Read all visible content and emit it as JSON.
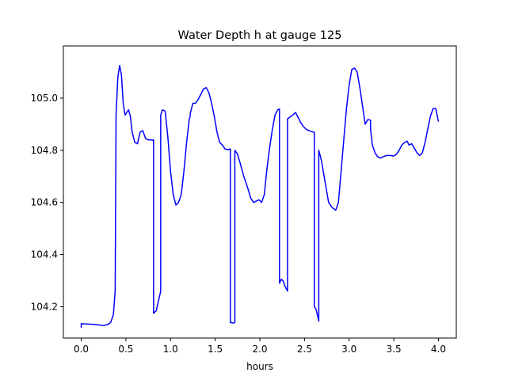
{
  "chart_data": {
    "type": "line",
    "title": "Water Depth h at gauge 125",
    "xlabel": "hours",
    "ylabel": "",
    "xlim": [
      -0.2,
      4.2
    ],
    "ylim": [
      104.08,
      105.2
    ],
    "xticks": [
      0.0,
      0.5,
      1.0,
      1.5,
      2.0,
      2.5,
      3.0,
      3.5,
      4.0
    ],
    "xtick_labels": [
      "0.0",
      "0.5",
      "1.0",
      "1.5",
      "2.0",
      "2.5",
      "3.0",
      "3.5",
      "4.0"
    ],
    "yticks": [
      104.2,
      104.4,
      104.6,
      104.8,
      105.0
    ],
    "ytick_labels": [
      "104.2",
      "104.4",
      "104.6",
      "104.8",
      "105.0"
    ],
    "grid": false,
    "legend": "none",
    "series": [
      {
        "color": "#0000ff",
        "x": [
          0.0,
          0.0,
          0.05,
          0.1,
          0.15,
          0.2,
          0.25,
          0.3,
          0.33,
          0.36,
          0.38,
          0.39,
          0.39,
          0.41,
          0.43,
          0.45,
          0.47,
          0.49,
          0.51,
          0.53,
          0.55,
          0.57,
          0.6,
          0.63,
          0.66,
          0.69,
          0.72,
          0.75,
          0.78,
          0.8,
          0.81,
          0.81,
          0.84,
          0.87,
          0.89,
          0.89,
          0.91,
          0.94,
          0.97,
          1.0,
          1.03,
          1.06,
          1.09,
          1.12,
          1.15,
          1.18,
          1.21,
          1.22,
          1.22,
          1.25,
          1.28,
          1.31,
          1.34,
          1.37,
          1.4,
          1.43,
          1.46,
          1.49,
          1.52,
          1.55,
          1.58,
          1.61,
          1.64,
          1.67,
          1.67,
          1.69,
          1.71,
          1.72,
          1.72,
          1.75,
          1.78,
          1.82,
          1.86,
          1.9,
          1.93,
          1.96,
          1.99,
          2.02,
          2.05,
          2.08,
          2.11,
          2.14,
          2.17,
          2.2,
          2.22,
          2.22,
          2.24,
          2.26,
          2.28,
          2.31,
          2.31,
          2.34,
          2.37,
          2.4,
          2.43,
          2.46,
          2.49,
          2.52,
          2.55,
          2.58,
          2.61,
          2.61,
          2.63,
          2.66,
          2.66,
          2.69,
          2.73,
          2.77,
          2.81,
          2.85,
          2.88,
          2.91,
          2.94,
          2.97,
          3.0,
          3.03,
          3.06,
          3.09,
          3.12,
          3.15,
          3.18,
          3.21,
          3.24,
          3.24,
          3.26,
          3.29,
          3.32,
          3.35,
          3.38,
          3.42,
          3.46,
          3.5,
          3.53,
          3.56,
          3.59,
          3.62,
          3.65,
          3.67,
          3.7,
          3.73,
          3.76,
          3.79,
          3.82,
          3.85,
          3.88,
          3.91,
          3.94,
          3.97,
          4.0
        ],
        "y": [
          104.12,
          104.135,
          104.134,
          104.133,
          104.132,
          104.13,
          104.128,
          104.132,
          104.14,
          104.17,
          104.26,
          104.935,
          104.935,
          105.08,
          105.125,
          105.09,
          104.98,
          104.935,
          104.945,
          104.955,
          104.93,
          104.87,
          104.83,
          104.825,
          104.87,
          104.875,
          104.845,
          104.84,
          104.84,
          104.838,
          104.84,
          104.175,
          104.185,
          104.23,
          104.26,
          104.935,
          104.955,
          104.95,
          104.85,
          104.72,
          104.63,
          104.59,
          104.6,
          104.63,
          104.72,
          104.83,
          104.92,
          104.93,
          104.94,
          104.98,
          104.98,
          104.995,
          105.015,
          105.035,
          105.04,
          105.02,
          104.98,
          104.93,
          104.87,
          104.83,
          104.82,
          104.805,
          104.802,
          104.805,
          104.14,
          104.138,
          104.138,
          104.14,
          104.8,
          104.785,
          104.75,
          104.7,
          104.66,
          104.615,
          104.6,
          104.605,
          104.61,
          104.6,
          104.63,
          104.73,
          104.81,
          104.88,
          104.935,
          104.955,
          104.958,
          104.29,
          104.305,
          104.3,
          104.28,
          104.26,
          104.92,
          104.928,
          104.935,
          104.945,
          104.925,
          104.905,
          104.89,
          104.88,
          104.875,
          104.872,
          104.868,
          104.2,
          104.19,
          104.145,
          104.8,
          104.76,
          104.68,
          104.6,
          104.58,
          104.57,
          104.6,
          104.72,
          104.84,
          104.96,
          105.05,
          105.11,
          105.115,
          105.1,
          105.04,
          104.97,
          104.9,
          104.918,
          104.915,
          104.88,
          104.82,
          104.79,
          104.775,
          104.77,
          104.775,
          104.78,
          104.78,
          104.778,
          104.785,
          104.8,
          104.82,
          104.83,
          104.835,
          104.82,
          104.825,
          104.808,
          104.79,
          104.78,
          104.79,
          104.83,
          104.88,
          104.93,
          104.96,
          104.96,
          104.91
        ]
      }
    ]
  }
}
